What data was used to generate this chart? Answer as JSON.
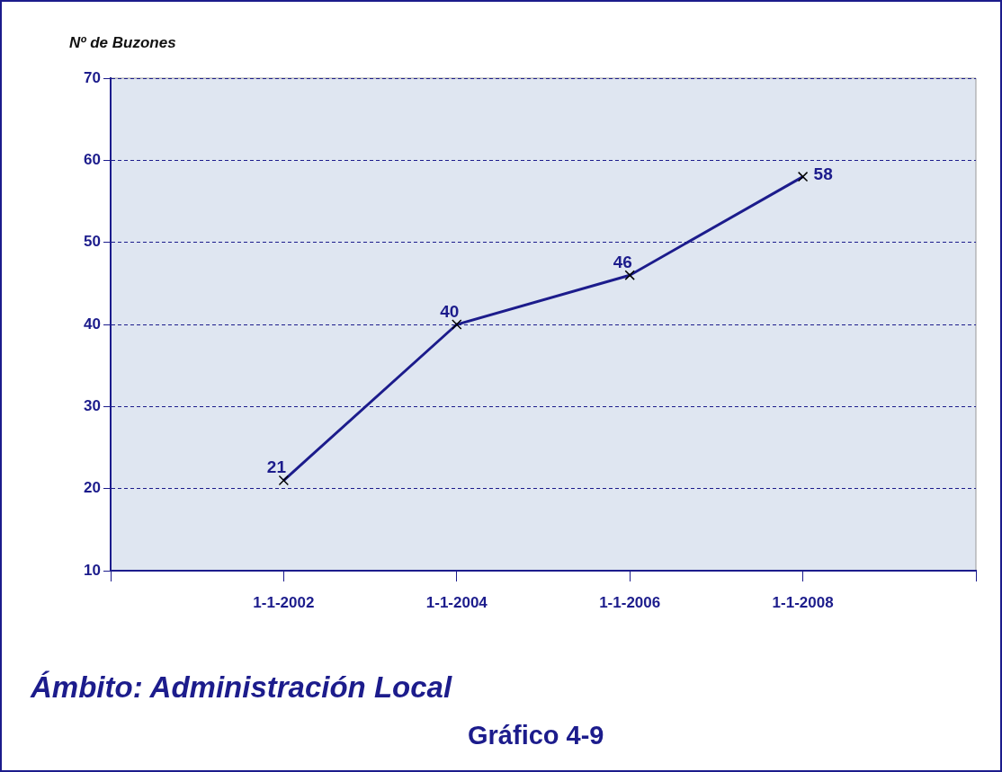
{
  "chart_data": {
    "type": "line",
    "ylabel": "Nº de Buzones",
    "categories": [
      null,
      "1-1-2002",
      "1-1-2004",
      "1-1-2006",
      "1-1-2008",
      null
    ],
    "series": [
      {
        "color": "#1c1c8c",
        "values": [
          null,
          21,
          40,
          46,
          58,
          null
        ]
      }
    ],
    "ylim": [
      10,
      70
    ],
    "yticks": [
      10,
      20,
      30,
      40,
      50,
      60,
      70
    ],
    "grid": "y",
    "legend": false,
    "marker": "cross",
    "line_style": "solid",
    "data_labels": true,
    "annotations": [
      "Ámbito: Administración Local",
      "Gráfico 4-9"
    ]
  }
}
